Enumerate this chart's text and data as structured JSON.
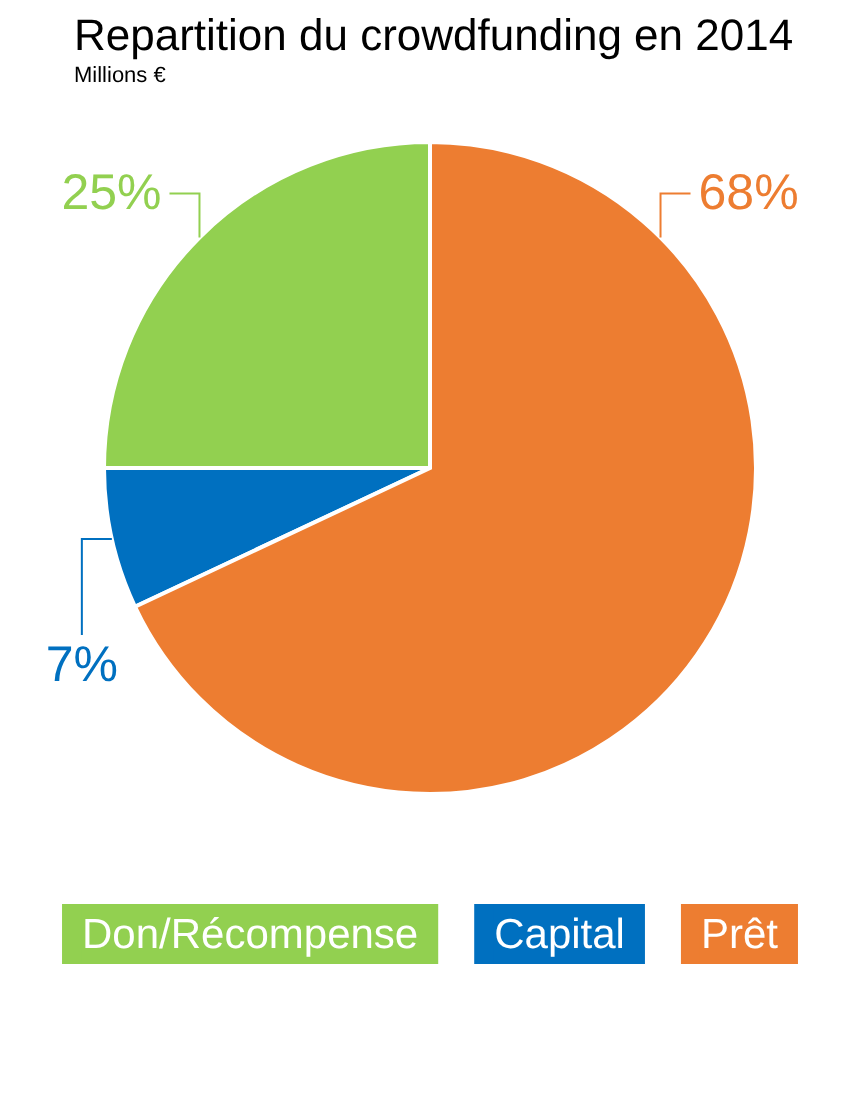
{
  "chart_data": {
    "type": "pie",
    "title": "Repartition du crowdfunding en 2014",
    "subtitle": "Millions €",
    "categories": [
      "Don/Récompense",
      "Capital",
      "Prêt"
    ],
    "values": [
      25,
      7,
      68
    ],
    "colors": [
      "#92d050",
      "#0070c0",
      "#ed7d31"
    ],
    "value_labels": [
      "25%",
      "7%",
      "68%"
    ],
    "legend": "bottom"
  }
}
